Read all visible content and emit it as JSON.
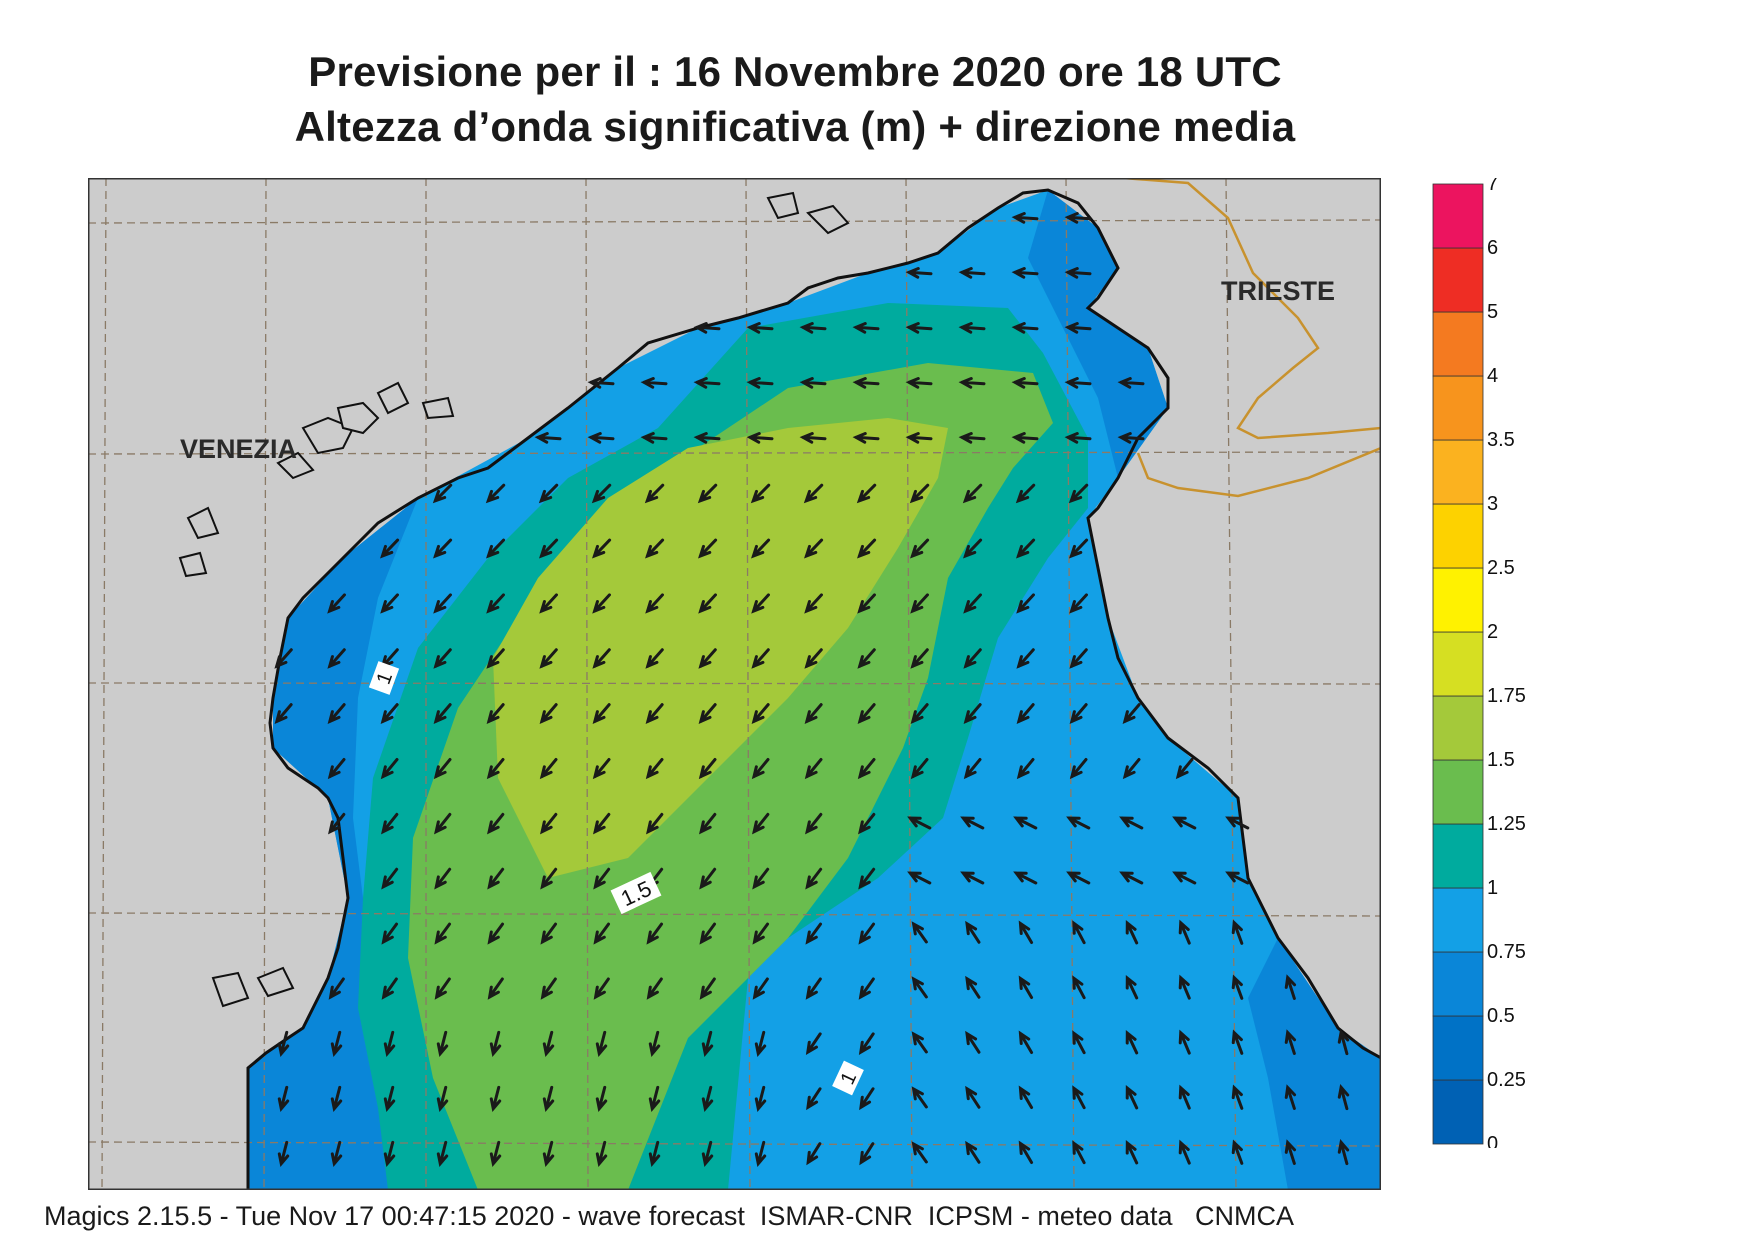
{
  "title_line1": "Previsione per il  :  16 Novembre  2020   ore 18 UTC",
  "title_line2": "Altezza d’onda significativa (m) + direzione media",
  "footer": "Magics 2.15.5 - Tue Nov 17 00:47:15 2020 - wave forecast  ISMAR-CNR  ICPSM - meteo data   CNMCA",
  "places": [
    {
      "name": "VENEZIA"
    },
    {
      "name": "TRIESTE"
    }
  ],
  "contour_labels": [
    "1",
    "1.5",
    "1"
  ],
  "legend": {
    "ticks": [
      "0",
      "0.25",
      "0.5",
      "0.75",
      "1",
      "1.25",
      "1.5",
      "1.75",
      "2",
      "2.5",
      "3",
      "3.5",
      "4",
      "5",
      "6",
      "7"
    ],
    "colors": [
      "#0061b4",
      "#0072c6",
      "#0a86d8",
      "#13a0e6",
      "#00ab9e",
      "#6abd4e",
      "#a4c93a",
      "#d6df22",
      "#fff200",
      "#fdd200",
      "#fbb21f",
      "#f7941d",
      "#f47a20",
      "#ee2d24",
      "#ec145f"
    ]
  },
  "colors": {
    "land": "#cccccc",
    "coast": "#111111",
    "border": "#c8922e",
    "grid": "#8a7a66",
    "arrow": "#1a1a1a"
  }
}
